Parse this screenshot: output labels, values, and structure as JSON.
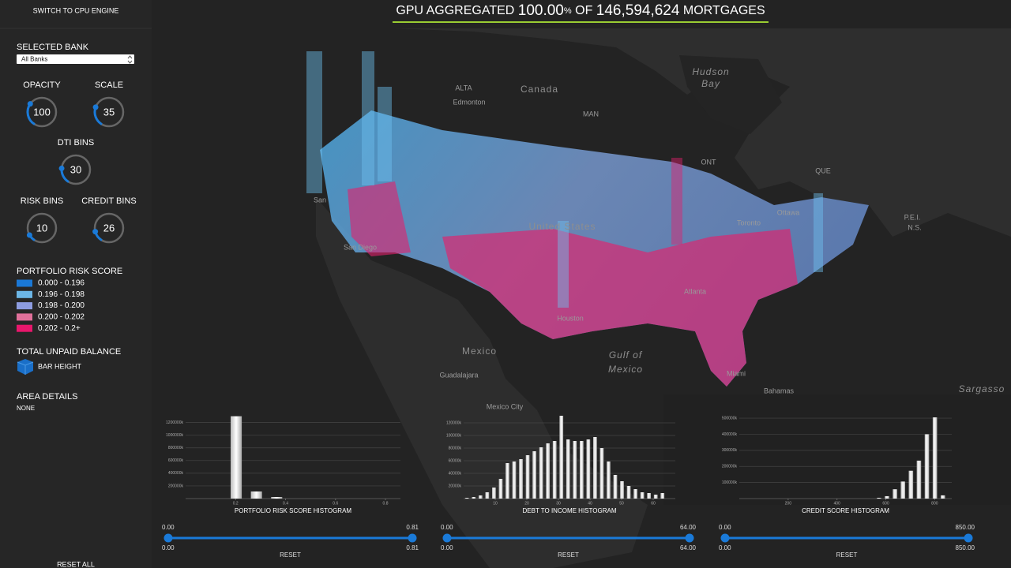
{
  "header": {
    "engine_toggle": "SWITCH TO CPU ENGINE",
    "title": {
      "prefix": "GPU AGGREGATED ",
      "percent": "100.00",
      "percent_unit": "%",
      "middle": " OF ",
      "count": "146,594,624",
      "suffix": " MORTGAGES"
    }
  },
  "sidebar": {
    "selected_bank": {
      "label": "SELECTED BANK",
      "value": "All Banks"
    },
    "dials": [
      {
        "label": "OPACITY",
        "value": 100
      },
      {
        "label": "SCALE",
        "value": 35
      },
      {
        "label": "DTI BINS",
        "value": 30
      },
      {
        "label": "RISK BINS",
        "value": 10
      },
      {
        "label": "CREDIT BINS",
        "value": 26
      }
    ],
    "legend": {
      "title": "PORTFOLIO RISK SCORE",
      "items": [
        {
          "label": "0.000 - 0.196",
          "color": "#1a78d6"
        },
        {
          "label": "0.196 - 0.198",
          "color": "#6cb6e6"
        },
        {
          "label": "0.198 - 0.200",
          "color": "#8d9ce0"
        },
        {
          "label": "0.200 - 0.202",
          "color": "#e0709a"
        },
        {
          "label": "0.202 - 0.2+",
          "color": "#e8176c"
        }
      ]
    },
    "bar_height": {
      "title": "TOTAL UNPAID BALANCE",
      "label": "BAR HEIGHT"
    },
    "area_details": {
      "title": "AREA DETAILS",
      "value": "NONE"
    },
    "reset_all": "RESET ALL"
  },
  "map": {
    "labels": [
      "Canada",
      "Hudson",
      "Bay",
      "United States",
      "Mexico",
      "Gulf of",
      "Mexico",
      "Bahamas",
      "Sargasso",
      "Edmonton",
      "San",
      "San Diego",
      "Houston",
      "Atlanta",
      "Miami",
      "Guadalajara",
      "Mexico City",
      "Toronto",
      "Ottawa",
      "ALTA",
      "MAN",
      "ONT",
      "QUE",
      "P.E.I.",
      "N.S."
    ]
  },
  "histograms": [
    {
      "title": "PORTFOLIO RISK SCORE HISTOGRAM",
      "bins": [
        0,
        0.081,
        0.162,
        0.243,
        0.324,
        0.405,
        0.486,
        0.567,
        0.648,
        0.729,
        0.81
      ],
      "counts": [
        0,
        0,
        1300000000,
        112000000,
        25000000,
        0,
        0,
        0,
        0,
        0
      ],
      "xlim": [
        0,
        0.86
      ],
      "xticks": [
        0.2,
        0.4,
        0.6,
        0.8
      ],
      "ylim": [
        0,
        1320000000
      ],
      "yticks": [
        {
          "value": 200000000,
          "label": "200000k"
        },
        {
          "value": 400000000,
          "label": "400000k"
        },
        {
          "value": 600000000,
          "label": "600000k"
        },
        {
          "value": 800000000,
          "label": "800000k"
        },
        {
          "value": 1000000000,
          "label": "1000000k"
        },
        {
          "value": 1200000000,
          "label": "1200000k"
        }
      ],
      "range": [
        "0.00",
        "0.81"
      ],
      "selection": [
        "0.00",
        "0.81"
      ],
      "reset": "RESET"
    },
    {
      "title": "DEBT TO INCOME HISTOGRAM",
      "bins": [
        0,
        2.13,
        4.27,
        6.4,
        8.53,
        10.67,
        12.8,
        14.93,
        17.07,
        19.2,
        21.33,
        23.47,
        25.6,
        27.73,
        29.87,
        32,
        34.13,
        36.27,
        38.4,
        40.53,
        42.67,
        44.8,
        46.93,
        49.07,
        51.2,
        53.33,
        55.47,
        57.6,
        59.73,
        61.87,
        64
      ],
      "counts": [
        1250000,
        2500000,
        5000000,
        10000000,
        17500000,
        31250000,
        56250000,
        58750000,
        62500000,
        68750000,
        75000000,
        81250000,
        87500000,
        91250000,
        131250000,
        93750000,
        91250000,
        91250000,
        93750000,
        97500000,
        80000000,
        58750000,
        37500000,
        27500000,
        20000000,
        15000000,
        10000000,
        8750000,
        6250000,
        8750000
      ],
      "xlim": [
        0,
        67
      ],
      "xticks": [
        10,
        20,
        30,
        40,
        50,
        60
      ],
      "ylim": [
        0,
        132500000
      ],
      "yticks": [
        {
          "value": 20000000,
          "label": "20000k"
        },
        {
          "value": 40000000,
          "label": "40000k"
        },
        {
          "value": 60000000,
          "label": "60000k"
        },
        {
          "value": 80000000,
          "label": "80000k"
        },
        {
          "value": 100000000,
          "label": "100000k"
        },
        {
          "value": 120000000,
          "label": "120000k"
        }
      ],
      "range": [
        "0.00",
        "64.00"
      ],
      "selection": [
        "0.00",
        "64.00"
      ],
      "reset": "RESET"
    },
    {
      "title": "CREDIT SCORE HISTOGRAM",
      "bins": [
        0,
        32.69,
        65.38,
        98.08,
        130.77,
        163.46,
        196.15,
        228.85,
        261.54,
        294.23,
        326.92,
        359.62,
        392.31,
        425,
        457.69,
        490.38,
        523.08,
        555.77,
        588.46,
        621.15,
        653.85,
        686.54,
        719.23,
        751.92,
        784.62,
        817.31,
        850
      ],
      "counts": [
        0,
        0,
        0,
        0,
        0,
        0,
        0,
        0,
        0,
        0,
        0,
        0,
        0,
        0,
        0,
        0,
        0,
        5000000,
        15000000,
        58000000,
        106000000,
        173000000,
        236000000,
        400000000,
        505000000,
        20000000
      ],
      "xlim": [
        0,
        870
      ],
      "xticks": [
        200,
        400,
        600,
        800
      ],
      "ylim": [
        0,
        520000000
      ],
      "yticks": [
        {
          "value": 100000000,
          "label": "100000k"
        },
        {
          "value": 200000000,
          "label": "200000k"
        },
        {
          "value": 300000000,
          "label": "300000k"
        },
        {
          "value": 400000000,
          "label": "400000k"
        },
        {
          "value": 500000000,
          "label": "500000k"
        }
      ],
      "range": [
        "0.00",
        "850.00"
      ],
      "selection": [
        "0.00",
        "850.00"
      ],
      "reset": "RESET"
    }
  ]
}
